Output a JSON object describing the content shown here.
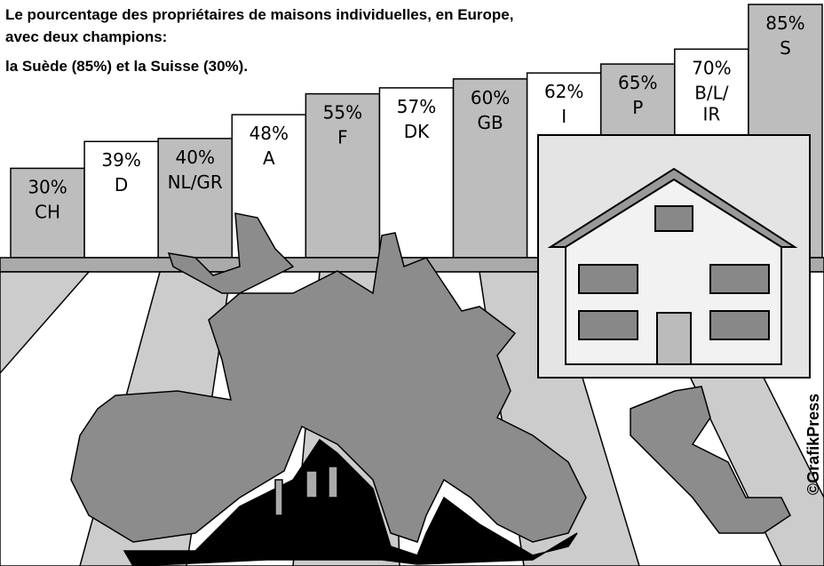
{
  "chart_data": {
    "type": "bar",
    "title": [
      "Le pourcentage des propriétaires de maisons individuelles, en Europe,",
      "avec deux champions:",
      "la Suède (85%) et la Suisse (30%)."
    ],
    "categories": [
      "CH",
      "D",
      "NL/GR",
      "A",
      "F",
      "DK",
      "GB",
      "I",
      "P",
      "B/L/IR",
      "S"
    ],
    "values": [
      30,
      39,
      40,
      48,
      55,
      57,
      60,
      62,
      65,
      70,
      85
    ],
    "value_labels": [
      "30%",
      "39%",
      "40%",
      "48%",
      "55%",
      "57%",
      "60%",
      "62%",
      "65%",
      "70%",
      "85%"
    ],
    "colors": [
      "#bdbdbd",
      "#ffffff",
      "#bdbdbd",
      "#ffffff",
      "#bdbdbd",
      "#ffffff",
      "#bdbdbd",
      "#ffffff",
      "#bdbdbd",
      "#ffffff",
      "#bdbdbd"
    ],
    "ylim": [
      0,
      85
    ],
    "credit": "©GrafikPress"
  }
}
